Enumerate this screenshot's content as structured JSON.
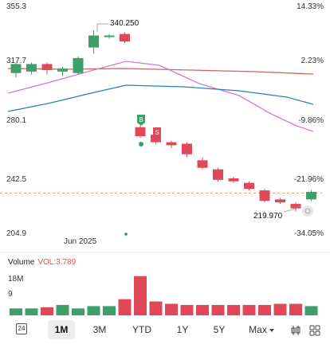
{
  "price_axis": [
    "355.3",
    "317.7",
    "280.1",
    "242.5",
    "204.9"
  ],
  "percent_axis": [
    "14.33%",
    "2.23%",
    "-9.86%",
    "-21.96%",
    "-34.05%"
  ],
  "high_callout": "340.250",
  "low_callout": "219.970",
  "date_label": "Jun 2025",
  "markers": {
    "buy": "B",
    "sell": "S"
  },
  "volume": {
    "title": "Volume",
    "value": "VOL:3.789",
    "axis": [
      "18M",
      "9"
    ]
  },
  "tabs": {
    "t1": "1M",
    "t2": "3M",
    "t3": "YTD",
    "t4": "1Y",
    "t5": "5Y",
    "t6": "Max",
    "day_badge": "24"
  },
  "colors": {
    "up": "#3e9f6b",
    "down": "#e0485a",
    "ma_red": "#c8665a",
    "ma_blue": "#2a80b4",
    "ma_pink": "#d27ad6"
  },
  "chart_data": {
    "type": "candlestick",
    "ylim": [
      204.9,
      355.3
    ],
    "candles": [
      {
        "o": 312,
        "c": 318,
        "h": 319,
        "l": 309
      },
      {
        "o": 313,
        "c": 318,
        "h": 319,
        "l": 311
      },
      {
        "o": 318,
        "c": 314,
        "h": 319,
        "l": 311
      },
      {
        "o": 313,
        "c": 315,
        "h": 316,
        "l": 310
      },
      {
        "o": 312,
        "c": 322,
        "h": 323,
        "l": 311
      },
      {
        "o": 329,
        "c": 337,
        "h": 340.25,
        "l": 325
      },
      {
        "o": 336,
        "c": 337,
        "h": 338,
        "l": 335
      },
      {
        "o": 338,
        "c": 333,
        "h": 339,
        "l": 332
      },
      {
        "o": 276,
        "c": 270,
        "h": 277,
        "l": 269
      },
      {
        "o": 271,
        "c": 266,
        "h": 272,
        "l": 265
      },
      {
        "o": 266,
        "c": 264,
        "h": 267,
        "l": 262
      },
      {
        "o": 265,
        "c": 258,
        "h": 266,
        "l": 256
      },
      {
        "o": 254,
        "c": 249,
        "h": 256,
        "l": 248
      },
      {
        "o": 248,
        "c": 241,
        "h": 249,
        "l": 240
      },
      {
        "o": 242,
        "c": 240,
        "h": 243,
        "l": 239
      },
      {
        "o": 239,
        "c": 235,
        "h": 240,
        "l": 234
      },
      {
        "o": 234,
        "c": 227,
        "h": 235,
        "l": 226
      },
      {
        "o": 228,
        "c": 226,
        "h": 229,
        "l": 225
      },
      {
        "o": 225,
        "c": 222,
        "h": 226,
        "l": 219.97
      },
      {
        "o": 228,
        "c": 233,
        "h": 234,
        "l": 227
      }
    ],
    "volume": [
      3,
      3,
      3.5,
      4.5,
      3,
      4,
      4,
      7,
      17,
      6,
      5,
      4.5,
      4.5,
      4.5,
      4.5,
      4.5,
      4.5,
      5,
      5,
      4
    ]
  }
}
